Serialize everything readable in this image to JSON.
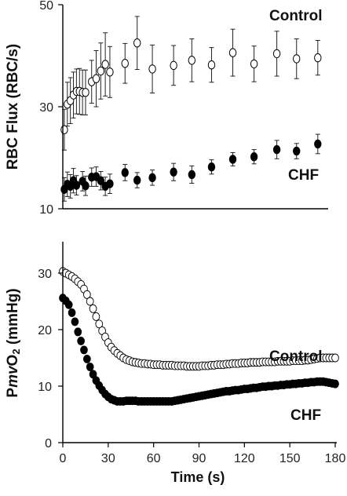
{
  "chart_data": [
    {
      "type": "scatter",
      "ylabel": "RBC Flux (RBC/s)",
      "xlim": [
        0,
        180
      ],
      "ylim": [
        10,
        50
      ],
      "yticks": [
        10,
        30,
        50
      ],
      "series": [
        {
          "name": "Control",
          "marker": "open-circle",
          "x": [
            1,
            3,
            5,
            7,
            9,
            11,
            13,
            15,
            19,
            22,
            25,
            28,
            31,
            41,
            49,
            59,
            73,
            85,
            98,
            112,
            126,
            141,
            154,
            168
          ],
          "y": [
            25.5,
            30.5,
            31.2,
            32.3,
            33.0,
            33.0,
            32.8,
            32.8,
            34.9,
            35.5,
            37.0,
            38.3,
            36.8,
            38.5,
            42.5,
            37.4,
            38.1,
            39.1,
            38.2,
            40.6,
            38.4,
            40.4,
            39.4,
            39.6
          ],
          "err": [
            4.0,
            4.3,
            4.5,
            4.5,
            4.4,
            4.5,
            4.4,
            4.4,
            4.2,
            5.5,
            5.5,
            6.2,
            5.0,
            3.9,
            5.2,
            4.7,
            3.9,
            4.2,
            3.4,
            4.6,
            3.5,
            4.4,
            3.9,
            3.4
          ]
        },
        {
          "name": "CHF",
          "marker": "filled-circle",
          "x": [
            1,
            3,
            5,
            7,
            9,
            13,
            15,
            19,
            22,
            25,
            28,
            31,
            41,
            49,
            59,
            73,
            85,
            98,
            112,
            126,
            141,
            154,
            168
          ],
          "y": [
            13.8,
            14.8,
            14.4,
            15.5,
            14.6,
            15.4,
            14.5,
            16.2,
            16.3,
            15.5,
            14.4,
            14.9,
            17.1,
            15.6,
            16.1,
            17.2,
            16.7,
            18.2,
            19.7,
            20.2,
            21.6,
            21.3,
            22.7
          ],
          "err": [
            2.3,
            2.4,
            2.3,
            2.4,
            1.9,
            1.9,
            1.9,
            1.8,
            1.9,
            1.8,
            1.8,
            1.9,
            1.6,
            1.5,
            1.5,
            1.7,
            1.7,
            1.4,
            1.3,
            1.4,
            1.8,
            1.5,
            1.9
          ]
        }
      ]
    },
    {
      "type": "scatter",
      "xlabel": "Time (s)",
      "ylabel": "PmvO2 (mmHg)",
      "ylabel_parts": {
        "a": "P",
        "b": "mv",
        "c": "O",
        "d": "2",
        "e": " (mmHg)"
      },
      "xlim": [
        0,
        180
      ],
      "ylim": [
        0,
        35
      ],
      "xticks": [
        0,
        30,
        60,
        90,
        120,
        150,
        180
      ],
      "yticks": [
        0,
        10,
        20,
        30
      ],
      "series": [
        {
          "name": "Control",
          "marker": "open-circle",
          "x_start": 0,
          "x_step": 2,
          "y": [
            30.3,
            30.0,
            29.7,
            29.4,
            29.0,
            28.5,
            28.0,
            27.2,
            26.2,
            25.0,
            23.7,
            22.3,
            21.0,
            19.8,
            18.7,
            17.7,
            16.9,
            16.3,
            15.8,
            15.4,
            15.0,
            14.7,
            14.5,
            14.3,
            14.2,
            14.1,
            14.0,
            14.0,
            13.9,
            13.9,
            13.8,
            13.8,
            13.8,
            13.7,
            13.7,
            13.7,
            13.7,
            13.6,
            13.6,
            13.6,
            13.6,
            13.5,
            13.5,
            13.5,
            13.5,
            13.5,
            13.6,
            13.6,
            13.6,
            13.7,
            13.7,
            13.8,
            13.8,
            13.8,
            13.9,
            13.9,
            14.0,
            14.0,
            14.0,
            14.1,
            14.1,
            14.1,
            14.2,
            14.2,
            14.2,
            14.2,
            14.3,
            14.3,
            14.3,
            14.3,
            14.3,
            14.4,
            14.4,
            14.4,
            14.4,
            14.4,
            14.5,
            14.5,
            14.5,
            14.5,
            14.6,
            14.6,
            14.7,
            14.8,
            14.9,
            15.0,
            15.0,
            15.0,
            15.0,
            15.0,
            15.0
          ]
        },
        {
          "name": "CHF",
          "marker": "filled-circle",
          "x_start": 0,
          "x_step": 2,
          "y": [
            25.6,
            25.1,
            24.4,
            23.0,
            21.4,
            19.6,
            18.0,
            16.4,
            14.8,
            13.4,
            12.1,
            11.0,
            10.1,
            9.3,
            8.6,
            8.1,
            7.7,
            7.5,
            7.3,
            7.3,
            7.3,
            7.4,
            7.4,
            7.4,
            7.4,
            7.3,
            7.3,
            7.3,
            7.3,
            7.3,
            7.3,
            7.3,
            7.3,
            7.3,
            7.3,
            7.3,
            7.3,
            7.4,
            7.5,
            7.6,
            7.7,
            7.8,
            7.9,
            8.0,
            8.1,
            8.2,
            8.3,
            8.4,
            8.5,
            8.6,
            8.7,
            8.8,
            8.9,
            9.0,
            9.1,
            9.1,
            9.2,
            9.3,
            9.3,
            9.4,
            9.5,
            9.5,
            9.6,
            9.7,
            9.7,
            9.8,
            9.9,
            9.9,
            10.0,
            10.0,
            10.1,
            10.1,
            10.2,
            10.2,
            10.3,
            10.3,
            10.4,
            10.4,
            10.5,
            10.5,
            10.6,
            10.6,
            10.7,
            10.7,
            10.8,
            10.8,
            10.8,
            10.7,
            10.6,
            10.5,
            10.4
          ]
        }
      ]
    }
  ]
}
